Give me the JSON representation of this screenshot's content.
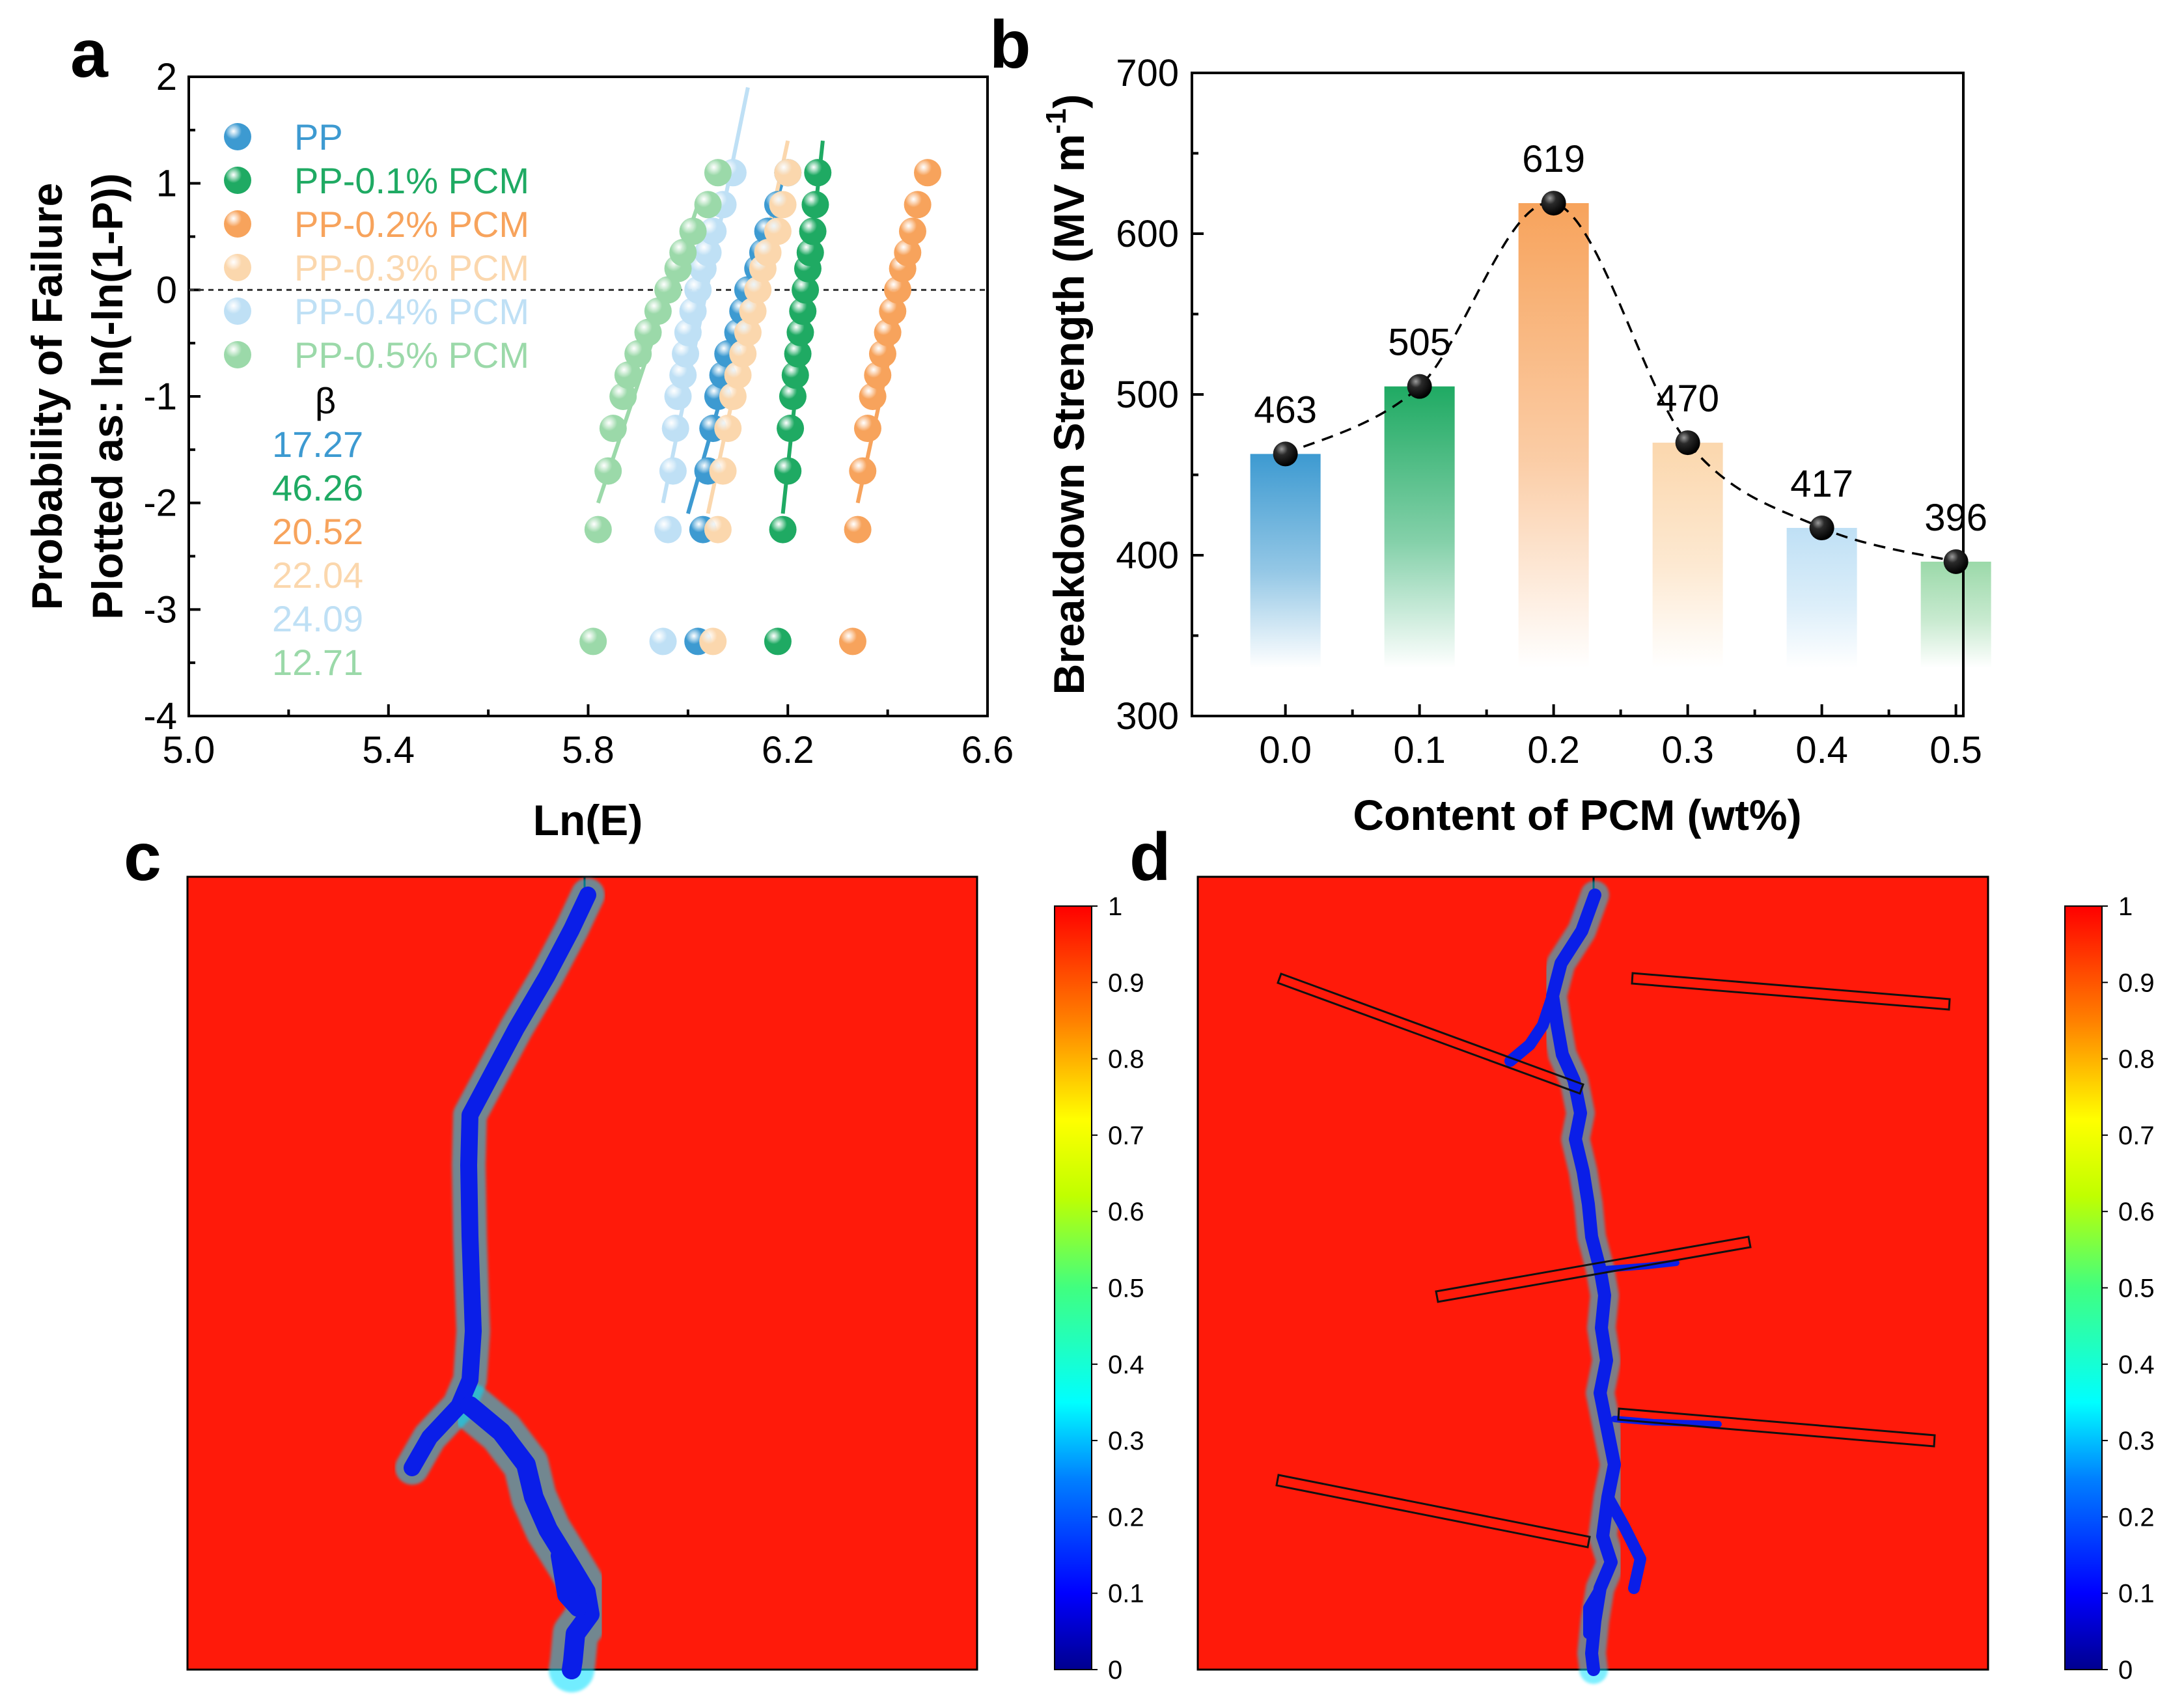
{
  "panels": {
    "a": "a",
    "b": "b",
    "c": "c",
    "d": "d"
  },
  "colors": {
    "PP": "#3d9ad1",
    "PP-0.1% PCM": "#1faa63",
    "PP-0.2% PCM": "#f7a35c",
    "PP-0.3% PCM": "#fbd7ad",
    "PP-0.4% PCM": "#bfe0f5",
    "PP-0.5% PCM": "#9bd9a9",
    "field_background": "#ff1a0a",
    "crack": "#0a1ee8"
  },
  "chart_data": [
    {
      "id": "a",
      "type": "scatter",
      "title": "",
      "xlabel": "Ln(E)",
      "ylabel_line1": "Probability of Failure",
      "ylabel_line2": "Plotted as: ln(-ln(1-P))",
      "xlim": [
        5.0,
        6.6
      ],
      "ylim": [
        -4,
        2
      ],
      "xticks": [
        "5.0",
        "5.4",
        "5.8",
        "6.2",
        "6.6"
      ],
      "yticks": [
        "2",
        "1",
        "0",
        "-1",
        "-2",
        "-3",
        "-4"
      ],
      "reference_line_y": 0,
      "beta_label": "β",
      "series": [
        {
          "name": "PP",
          "beta": "17.27",
          "x": [
            6.02,
            6.03,
            6.04,
            6.05,
            6.06,
            6.07,
            6.08,
            6.1,
            6.11,
            6.12,
            6.14,
            6.15,
            6.16,
            6.18,
            6.2
          ],
          "y": [
            -3.3,
            -2.25,
            -1.7,
            -1.3,
            -1.0,
            -0.8,
            -0.6,
            -0.4,
            -0.2,
            0.0,
            0.2,
            0.35,
            0.55,
            0.8,
            1.1
          ],
          "fit_x": [
            6.0,
            6.2
          ],
          "fit_y": [
            -2.1,
            1.2
          ]
        },
        {
          "name": "PP-0.1% PCM",
          "beta": "46.26",
          "x": [
            6.18,
            6.19,
            6.2,
            6.205,
            6.21,
            6.215,
            6.22,
            6.225,
            6.23,
            6.235,
            6.24,
            6.245,
            6.25,
            6.255,
            6.26
          ],
          "y": [
            -3.3,
            -2.25,
            -1.7,
            -1.3,
            -1.0,
            -0.8,
            -0.6,
            -0.4,
            -0.2,
            0.0,
            0.2,
            0.35,
            0.55,
            0.8,
            1.1
          ],
          "fit_x": [
            6.19,
            6.27
          ],
          "fit_y": [
            -2.1,
            1.4
          ]
        },
        {
          "name": "PP-0.2% PCM",
          "beta": "20.52",
          "x": [
            6.33,
            6.34,
            6.35,
            6.36,
            6.37,
            6.38,
            6.39,
            6.4,
            6.41,
            6.42,
            6.43,
            6.44,
            6.45,
            6.46,
            6.48
          ],
          "y": [
            -3.3,
            -2.25,
            -1.7,
            -1.3,
            -1.0,
            -0.8,
            -0.6,
            -0.4,
            -0.2,
            0.0,
            0.2,
            0.35,
            0.55,
            0.8,
            1.1
          ],
          "fit_x": [
            6.34,
            6.46
          ],
          "fit_y": [
            -2.0,
            0.6
          ]
        },
        {
          "name": "PP-0.3% PCM",
          "beta": "22.04",
          "x": [
            6.05,
            6.06,
            6.07,
            6.08,
            6.09,
            6.1,
            6.11,
            6.12,
            6.13,
            6.14,
            6.15,
            6.16,
            6.18,
            6.19,
            6.2
          ],
          "y": [
            -3.3,
            -2.25,
            -1.7,
            -1.3,
            -1.0,
            -0.8,
            -0.6,
            -0.4,
            -0.2,
            0.0,
            0.2,
            0.35,
            0.55,
            0.8,
            1.1
          ],
          "fit_x": [
            6.04,
            6.2
          ],
          "fit_y": [
            -2.1,
            1.4
          ]
        },
        {
          "name": "PP-0.4% PCM",
          "beta": "24.09",
          "x": [
            5.95,
            5.96,
            5.97,
            5.975,
            5.98,
            5.99,
            5.995,
            6.0,
            6.01,
            6.02,
            6.03,
            6.04,
            6.05,
            6.07,
            6.09
          ],
          "y": [
            -3.3,
            -2.25,
            -1.7,
            -1.3,
            -1.0,
            -0.8,
            -0.6,
            -0.4,
            -0.2,
            0.0,
            0.2,
            0.35,
            0.55,
            0.8,
            1.1
          ],
          "fit_x": [
            5.95,
            6.12
          ],
          "fit_y": [
            -2.0,
            1.9
          ]
        },
        {
          "name": "PP-0.5% PCM",
          "beta": "12.71",
          "x": [
            5.81,
            5.82,
            5.84,
            5.85,
            5.87,
            5.88,
            5.9,
            5.92,
            5.94,
            5.96,
            5.98,
            5.99,
            6.01,
            6.04,
            6.06
          ],
          "y": [
            -3.3,
            -2.25,
            -1.7,
            -1.3,
            -1.0,
            -0.8,
            -0.6,
            -0.4,
            -0.2,
            0.0,
            0.2,
            0.35,
            0.55,
            0.8,
            1.1
          ],
          "fit_x": [
            5.82,
            6.02
          ],
          "fit_y": [
            -2.0,
            0.8
          ]
        }
      ]
    },
    {
      "id": "b",
      "type": "bar",
      "xlabel": "Content of PCM (wt%)",
      "ylabel": "Breakdown Strength (MV m",
      "ylabel_sup": "-1",
      "ylabel_end": ")",
      "ylim": [
        300,
        700
      ],
      "yticks": [
        "300",
        "400",
        "500",
        "600",
        "700"
      ],
      "categories": [
        "0.0",
        "0.1",
        "0.2",
        "0.3",
        "0.4",
        "0.5"
      ],
      "values": [
        463,
        505,
        619,
        470,
        417,
        396
      ],
      "labels": [
        "463",
        "505",
        "619",
        "470",
        "417",
        "396"
      ]
    },
    {
      "id": "c",
      "type": "heatmap",
      "colorbar_ticks": [
        "1",
        "0.9",
        "0.8",
        "0.7",
        "0.6",
        "0.5",
        "0.4",
        "0.3",
        "0.2",
        "0.1",
        "0"
      ],
      "colorbar_range": [
        0,
        1
      ]
    },
    {
      "id": "d",
      "type": "heatmap",
      "colorbar_ticks": [
        "1",
        "0.9",
        "0.8",
        "0.7",
        "0.6",
        "0.5",
        "0.4",
        "0.3",
        "0.2",
        "0.1",
        "0"
      ],
      "colorbar_range": [
        0,
        1
      ]
    }
  ]
}
